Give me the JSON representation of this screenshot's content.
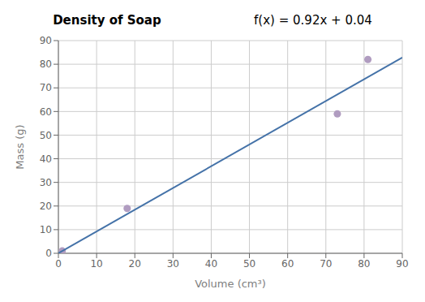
{
  "chart_data": {
    "type": "scatter",
    "title": "Density of Soap",
    "annotations": [
      "f(x) = 0.92x + 0.04"
    ],
    "xlabel": "Volume (cm³)",
    "ylabel": "Mass (g)",
    "xlim": [
      0,
      90
    ],
    "ylim": [
      0,
      90
    ],
    "xticks": [
      0,
      10,
      20,
      30,
      40,
      50,
      60,
      70,
      80,
      90
    ],
    "yticks": [
      0,
      10,
      20,
      30,
      40,
      50,
      60,
      70,
      80,
      90
    ],
    "grid": true,
    "series": [
      {
        "type": "scatter",
        "color": "#b09cc0",
        "x": [
          1,
          18,
          73,
          81
        ],
        "values": [
          1,
          19,
          59,
          82
        ]
      },
      {
        "type": "line",
        "color": "#4472a8",
        "x": [
          0,
          90
        ],
        "values": [
          0.04,
          82.84
        ]
      }
    ]
  }
}
